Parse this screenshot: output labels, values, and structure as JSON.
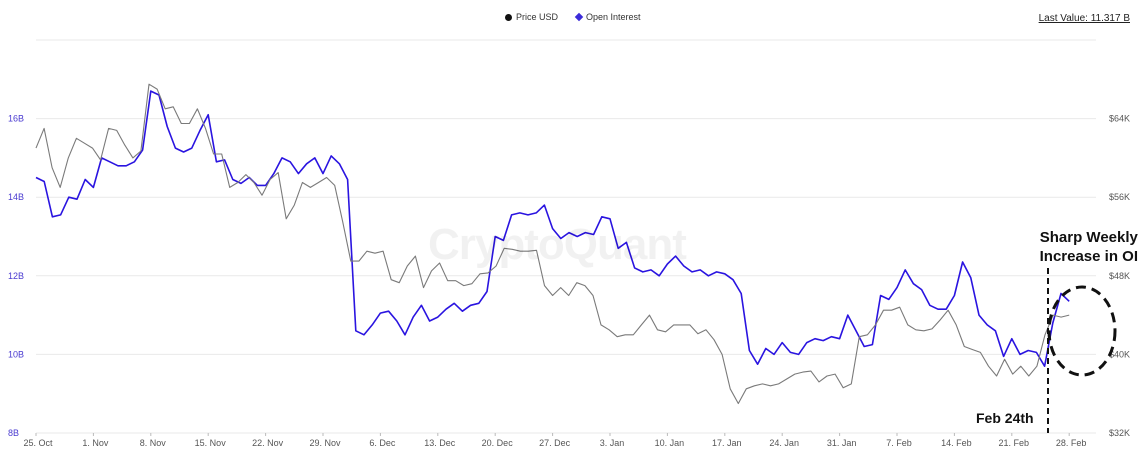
{
  "legend": {
    "price_label": "Price USD",
    "oi_label": "Open Interest"
  },
  "last_value": "Last Value: 11.317 B",
  "watermark": "CryptoQuant",
  "annotations": {
    "oi_line1": "Sharp Weekly",
    "oi_line2": "Increase in OI",
    "feb": "Feb 24th"
  },
  "colors": {
    "oi": "#2a14e0",
    "price": "#7a7a7a",
    "grid": "#e9e9e9",
    "axis_text": "#555555",
    "oi_axis_text": "#4a3bd0"
  },
  "chart_data": {
    "type": "line",
    "x_ticks": [
      "25. Oct",
      "1. Nov",
      "8. Nov",
      "15. Nov",
      "22. Nov",
      "29. Nov",
      "6. Dec",
      "13. Dec",
      "20. Dec",
      "27. Dec",
      "3. Jan",
      "10. Jan",
      "17. Jan",
      "24. Jan",
      "31. Jan",
      "7. Feb",
      "14. Feb",
      "21. Feb",
      "28. Feb"
    ],
    "x_start": "2021-10-25",
    "left_axis": {
      "label": "",
      "ticks": [
        "8B",
        "10B",
        "12B",
        "14B",
        "16B"
      ],
      "range": [
        8,
        18
      ]
    },
    "right_axis": {
      "label": "",
      "ticks": [
        "$32K",
        "$40K",
        "$48K",
        "$56K",
        "$64K"
      ],
      "range": [
        32,
        72
      ]
    },
    "series": [
      {
        "name": "Open Interest",
        "axis": "left",
        "values": [
          14.5,
          14.4,
          13.5,
          13.55,
          14.0,
          13.95,
          14.45,
          14.25,
          15.0,
          14.9,
          14.8,
          14.8,
          14.9,
          15.2,
          16.7,
          16.6,
          15.8,
          15.25,
          15.15,
          15.25,
          15.7,
          16.1,
          14.9,
          14.95,
          14.45,
          14.35,
          14.5,
          14.3,
          14.3,
          14.6,
          15.0,
          14.9,
          14.6,
          14.85,
          15.0,
          14.6,
          15.05,
          14.85,
          14.45,
          10.6,
          10.5,
          10.75,
          11.05,
          11.1,
          10.85,
          10.5,
          10.95,
          11.25,
          10.85,
          10.95,
          11.15,
          11.3,
          11.1,
          11.25,
          11.3,
          11.6,
          13.0,
          12.9,
          13.55,
          13.6,
          13.55,
          13.6,
          13.8,
          13.2,
          12.95,
          13.1,
          13.0,
          13.1,
          13.05,
          13.5,
          13.45,
          12.7,
          12.85,
          12.2,
          12.1,
          12.15,
          12.0,
          12.3,
          12.5,
          12.25,
          12.1,
          12.15,
          12.0,
          12.1,
          12.05,
          11.9,
          11.55,
          10.1,
          9.75,
          10.15,
          10.0,
          10.3,
          10.05,
          10.0,
          10.3,
          10.4,
          10.35,
          10.45,
          10.4,
          11.0,
          10.6,
          10.2,
          10.25,
          11.5,
          11.4,
          11.7,
          12.15,
          11.8,
          11.65,
          11.25,
          11.15,
          11.15,
          11.5,
          12.35,
          11.95,
          11.0,
          10.75,
          10.6,
          9.95,
          10.4,
          10.0,
          10.1,
          10.05,
          9.7,
          10.8,
          11.55,
          11.35
        ],
        "color": "#2a14e0"
      },
      {
        "name": "Price USD",
        "axis": "right",
        "values": [
          61,
          63,
          59,
          57,
          60,
          62,
          61.5,
          61,
          59.8,
          63,
          62.8,
          61.3,
          60,
          60.7,
          67.5,
          67,
          65,
          65.2,
          63.5,
          63.5,
          65,
          63,
          60.4,
          60.4,
          57,
          57.5,
          58.3,
          57.5,
          56.2,
          57.8,
          58.5,
          53.8,
          55.2,
          57.5,
          57,
          57.5,
          58,
          57.2,
          53.5,
          49.5,
          49.5,
          50.5,
          50.3,
          50.5,
          47.6,
          47.3,
          49,
          50,
          46.8,
          48.5,
          49.3,
          47.5,
          47.5,
          47,
          47.2,
          48.2,
          48.3,
          49,
          50.8,
          50.7,
          50.5,
          50.5,
          50.6,
          47,
          46,
          46.8,
          46,
          47.3,
          47,
          46,
          43,
          42.5,
          41.8,
          42,
          42,
          43,
          44,
          42.5,
          42.3,
          43,
          43,
          43,
          42.1,
          42.5,
          41.5,
          40,
          36.5,
          35,
          36.5,
          36.8,
          37,
          36.8,
          37,
          37.5,
          38,
          38.2,
          38.3,
          37.2,
          37.8,
          38,
          36.6,
          37,
          41.8,
          42,
          43,
          44.5,
          44.5,
          44.8,
          43,
          42.5,
          42.4,
          42.6,
          43.5,
          44.5,
          43,
          40.8,
          40.5,
          40.2,
          38.8,
          37.8,
          39.5,
          38,
          38.8,
          37.8,
          38.8,
          42,
          44,
          43.8,
          44
        ],
        "color": "#7a7a7a"
      }
    ],
    "grid": true,
    "legend_position": "top-center"
  }
}
